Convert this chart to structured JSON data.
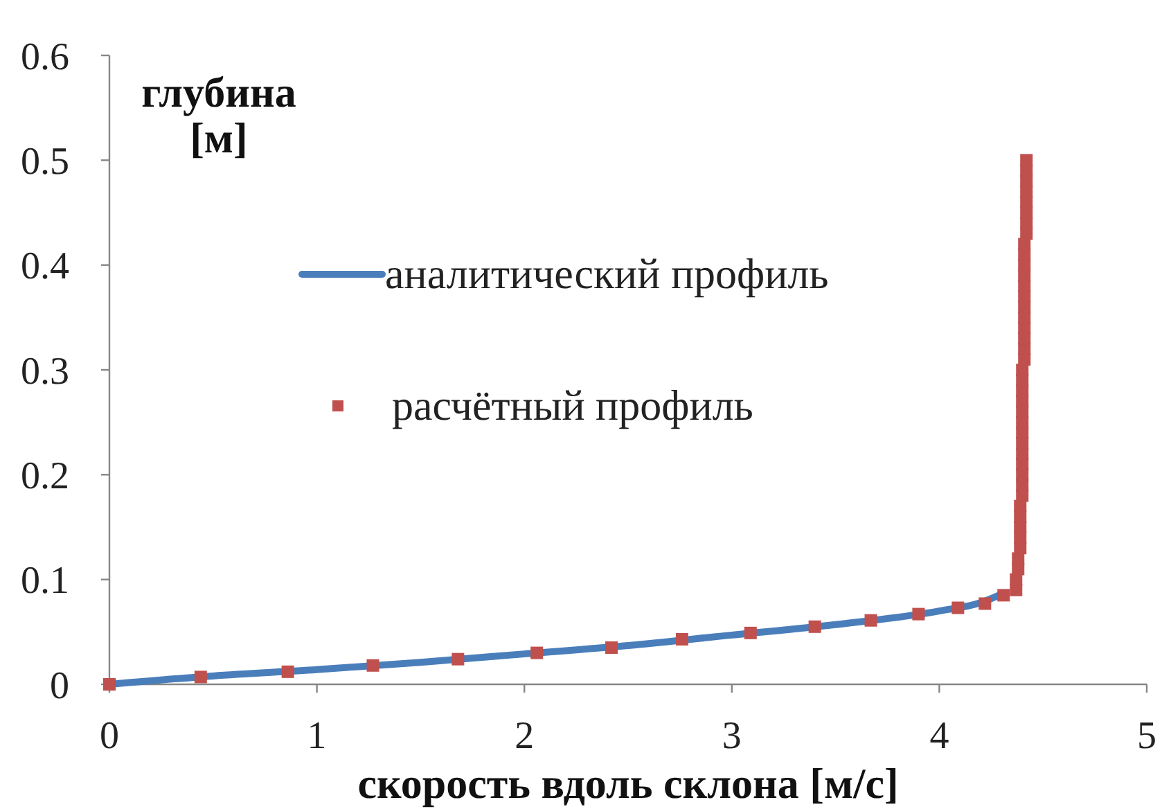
{
  "chart_data": {
    "type": "line",
    "xlabel": "скорость вдоль склона [м/с]",
    "ylabel": "глубина [м]",
    "xlim": [
      0,
      5
    ],
    "ylim": [
      0,
      0.6
    ],
    "xticks": [
      0,
      1,
      2,
      3,
      4,
      5
    ],
    "yticks": [
      0,
      0.1,
      0.2,
      0.3,
      0.4,
      0.5,
      0.6
    ],
    "legend": "top",
    "series": [
      {
        "name": "аналитический профиль",
        "type": "line",
        "color": "#4a7ebb",
        "x": [
          0,
          0.5,
          1,
          1.5,
          2,
          2.5,
          3,
          3.5,
          4,
          4.2,
          4.3
        ],
        "values": [
          0,
          0.008,
          0.014,
          0.021,
          0.029,
          0.037,
          0.047,
          0.057,
          0.07,
          0.078,
          0.086
        ]
      },
      {
        "name": "расчётный профиль",
        "type": "scatter",
        "color": "#c0504d",
        "marker": "square",
        "x": [
          0,
          0.44,
          0.86,
          1.27,
          1.68,
          2.06,
          2.42,
          2.76,
          3.09,
          3.4,
          3.67,
          3.9,
          4.09,
          4.22,
          4.31,
          4.37,
          4.37,
          4.38,
          4.38,
          4.39,
          4.39,
          4.39,
          4.39,
          4.39,
          4.4,
          4.4,
          4.4,
          4.4,
          4.4,
          4.4,
          4.4,
          4.4,
          4.4,
          4.4,
          4.4,
          4.4,
          4.4,
          4.41,
          4.41,
          4.41,
          4.41,
          4.41,
          4.41,
          4.41,
          4.41,
          4.41,
          4.41,
          4.41,
          4.41,
          4.42,
          4.42,
          4.42,
          4.42,
          4.42,
          4.42,
          4.42,
          4.42
        ],
        "values": [
          0,
          0.007,
          0.012,
          0.018,
          0.024,
          0.03,
          0.035,
          0.043,
          0.049,
          0.055,
          0.061,
          0.067,
          0.073,
          0.077,
          0.085,
          0.09,
          0.1,
          0.11,
          0.12,
          0.13,
          0.14,
          0.15,
          0.16,
          0.17,
          0.18,
          0.19,
          0.2,
          0.21,
          0.22,
          0.23,
          0.24,
          0.25,
          0.26,
          0.27,
          0.28,
          0.29,
          0.3,
          0.31,
          0.32,
          0.33,
          0.34,
          0.35,
          0.36,
          0.37,
          0.38,
          0.39,
          0.4,
          0.41,
          0.42,
          0.43,
          0.44,
          0.45,
          0.46,
          0.47,
          0.48,
          0.49,
          0.5
        ]
      }
    ]
  }
}
